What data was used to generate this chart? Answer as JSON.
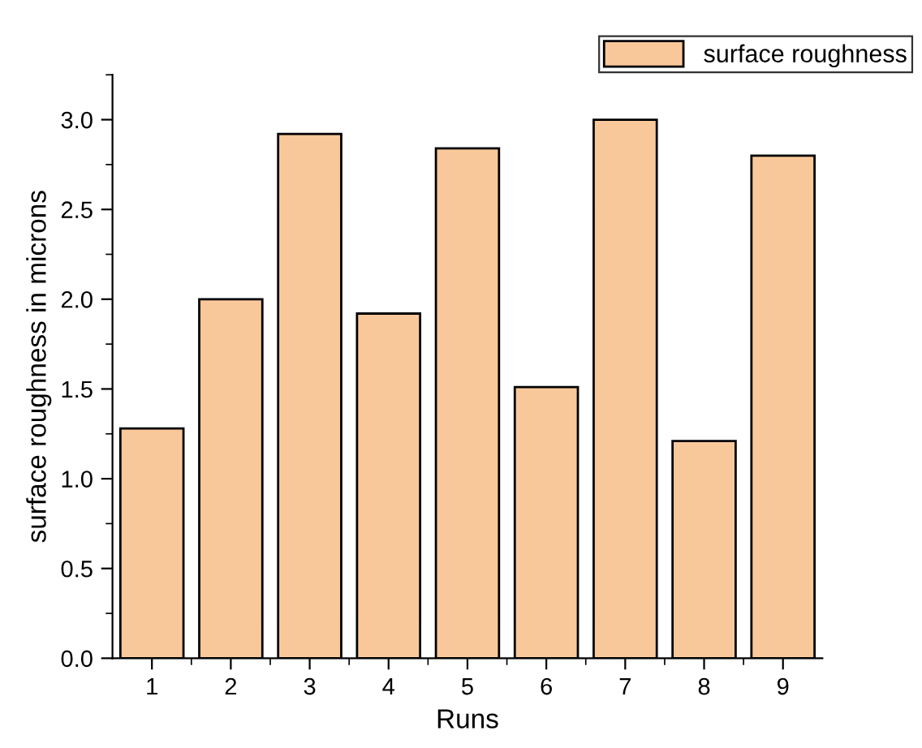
{
  "chart_data": {
    "type": "bar",
    "xlabel": "Runs",
    "ylabel": "surface roughness in microns",
    "categories": [
      "1",
      "2",
      "3",
      "4",
      "5",
      "6",
      "7",
      "8",
      "9"
    ],
    "series": [
      {
        "name": "surface roughness",
        "color": "#f9c89a",
        "values": [
          1.28,
          2.0,
          2.92,
          1.92,
          2.84,
          1.51,
          3.0,
          1.21,
          2.8
        ]
      }
    ],
    "ylim": [
      0,
      3.25
    ],
    "yticks": [
      {
        "value": 0,
        "label": "0.0"
      },
      0.5,
      {
        "value": 1,
        "label": "1.0"
      },
      1.5,
      {
        "value": 2,
        "label": "2.0"
      },
      2.5,
      {
        "value": 3,
        "label": "3.0"
      }
    ],
    "grid": false,
    "legend": "top right"
  }
}
